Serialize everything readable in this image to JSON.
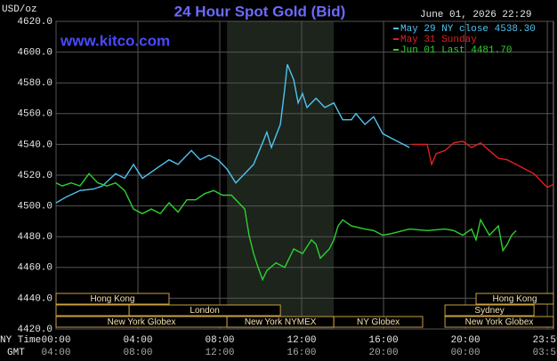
{
  "chart_data": {
    "type": "line",
    "title": "24 Hour Spot Gold (Bid)",
    "website": "www.kitco.com",
    "timestamp": "June 01, 2026 22:29",
    "ylabel": "USD/oz",
    "xlabel": "NY Time",
    "x2label": "GMT",
    "xlim": [
      0,
      24.3
    ],
    "ylim": [
      4420,
      4620
    ],
    "yticks": [
      {
        "value": 4420,
        "label": "4420.0"
      },
      {
        "value": 4440,
        "label": "4440.0"
      },
      {
        "value": 4460,
        "label": "4460.0"
      },
      {
        "value": 4480,
        "label": "4480.0"
      },
      {
        "value": 4500,
        "label": "4500.0"
      },
      {
        "value": 4520,
        "label": "4520.0"
      },
      {
        "value": 4540,
        "label": "4540.0"
      },
      {
        "value": 4560,
        "label": "4560.0"
      },
      {
        "value": 4580,
        "label": "4580.0"
      },
      {
        "value": 4600,
        "label": "4600.0"
      },
      {
        "value": 4620,
        "label": "4620.0"
      }
    ],
    "xticks": [
      {
        "value": 0,
        "label": "00:00"
      },
      {
        "value": 4,
        "label": "04:00"
      },
      {
        "value": 8,
        "label": "08:00"
      },
      {
        "value": 12,
        "label": "12:00"
      },
      {
        "value": 16,
        "label": "16:00"
      },
      {
        "value": 20,
        "label": "20:00"
      },
      {
        "value": 24,
        "label": "23:59"
      }
    ],
    "x2ticks": [
      {
        "value": 0,
        "label": "04:00"
      },
      {
        "value": 4,
        "label": "08:00"
      },
      {
        "value": 8,
        "label": "12:00"
      },
      {
        "value": 12,
        "label": "16:00"
      },
      {
        "value": 16,
        "label": "20:00"
      },
      {
        "value": 20,
        "label": "00:00"
      },
      {
        "value": 24,
        "label": "03:59"
      }
    ],
    "grid": true,
    "shaded": [
      8.35,
      13.57
    ],
    "sessions": [
      [
        {
          "label": "Hong Kong",
          "start": 0,
          "end": 5.52
        },
        {
          "label": "Hong Kong",
          "start": 20.52,
          "end": 24.3
        }
      ],
      [
        {
          "label": null,
          "start": 0,
          "end": 3.57
        },
        {
          "label": "London",
          "start": 3.57,
          "end": 10.96
        },
        {
          "label": "Sydney",
          "start": 19.0,
          "end": 23.35
        }
      ],
      [
        {
          "label": "New York Globex",
          "start": 0,
          "end": 8.35
        },
        {
          "label": "New York NYMEX",
          "start": 8.35,
          "end": 13.57
        },
        {
          "label": "NY Globex",
          "start": 13.57,
          "end": 17.91
        },
        {
          "label": "New York Globex",
          "start": 19.0,
          "end": 24.3
        }
      ]
    ],
    "series": [
      {
        "name": "May 29 NY close 4538.30",
        "color": "#4fc3f0",
        "x": [
          0,
          0.52,
          1.17,
          1.83,
          2.26,
          2.91,
          3.35,
          3.78,
          4.22,
          4.87,
          5.52,
          5.96,
          6.61,
          7.04,
          7.48,
          7.91,
          8.35,
          8.78,
          9.22,
          9.65,
          10.09,
          10.3,
          10.52,
          10.96,
          11.17,
          11.3,
          11.61,
          11.83,
          12.04,
          12.26,
          12.7,
          13.13,
          13.57,
          14.0,
          14.43,
          14.65,
          15.09,
          15.52,
          15.96,
          16.39,
          16.83,
          17.26
        ],
        "values": [
          4502,
          4506,
          4510,
          4511,
          4513,
          4521,
          4518,
          4527,
          4518,
          4524,
          4530,
          4527,
          4536,
          4530,
          4533,
          4530,
          4524,
          4515,
          4521,
          4527,
          4541,
          4548,
          4538,
          4553,
          4576,
          4592,
          4582,
          4567,
          4573,
          4564,
          4570,
          4564,
          4567,
          4556,
          4556,
          4560,
          4553,
          4558,
          4547,
          4544,
          4541,
          4538
        ]
      },
      {
        "name": "May 31 Sunday",
        "color": "#e02020",
        "x": [
          17.39,
          18.13,
          18.35,
          18.57,
          19.0,
          19.43,
          19.87,
          20.3,
          20.74,
          21.17,
          21.61,
          22.04,
          22.48,
          22.91,
          23.35,
          23.78,
          24.0,
          24.3
        ],
        "values": [
          4540,
          4540,
          4527,
          4534,
          4536,
          4541,
          4542,
          4538,
          4541,
          4536,
          4531,
          4530,
          4527,
          4524,
          4521,
          4515,
          4512,
          4514
        ]
      },
      {
        "name": "Jun 01 Last 4481.70",
        "color": "#30d030",
        "x": [
          0,
          0.3,
          0.74,
          1.17,
          1.61,
          2.04,
          2.48,
          2.91,
          3.35,
          3.78,
          4.22,
          4.65,
          5.09,
          5.52,
          5.96,
          6.39,
          6.83,
          7.26,
          7.7,
          8.13,
          8.57,
          9.0,
          9.22,
          9.43,
          9.65,
          9.87,
          10.09,
          10.3,
          10.74,
          11.17,
          11.61,
          12.04,
          12.48,
          12.7,
          12.91,
          13.35,
          13.57,
          13.78,
          14.0,
          14.43,
          15.09,
          15.52,
          15.96,
          16.39,
          17.26,
          18.13,
          19.0,
          19.43,
          19.87,
          20.3,
          20.52,
          20.74,
          21.17,
          21.61,
          21.83,
          22.04,
          22.26,
          22.48
        ],
        "values": [
          4515,
          4513,
          4515,
          4513,
          4521,
          4515,
          4513,
          4515,
          4510,
          4498,
          4495,
          4498,
          4495,
          4502,
          4496,
          4504,
          4504,
          4508,
          4510,
          4507,
          4507,
          4501,
          4498,
          4481,
          4469,
          4460,
          4452,
          4458,
          4463,
          4460,
          4472,
          4469,
          4478,
          4475,
          4466,
          4472,
          4478,
          4487,
          4491,
          4487,
          4485,
          4484,
          4481,
          4482,
          4485,
          4484,
          4485,
          4484,
          4481,
          4485,
          4478,
          4491,
          4481,
          4487,
          4471,
          4475,
          4481,
          4484
        ]
      }
    ]
  }
}
